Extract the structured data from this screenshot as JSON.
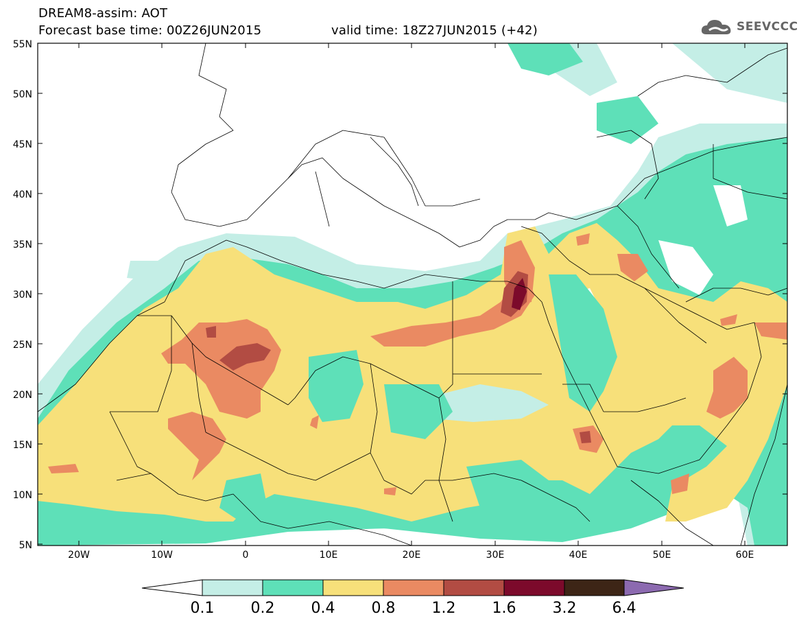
{
  "header": {
    "line1": "DREAM8-assim: AOT",
    "line2": "Forecast base time: 00Z26JUN2015",
    "valid": "valid time: 18Z27JUN2015 (+42)"
  },
  "logo": {
    "text": "SEEVCCC",
    "icon": "cloud-icon"
  },
  "map": {
    "lat_labels": [
      "55N",
      "50N",
      "45N",
      "40N",
      "35N",
      "30N",
      "25N",
      "20N",
      "15N",
      "10N",
      "5N"
    ],
    "lon_labels": [
      "20W",
      "10W",
      "0",
      "10E",
      "20E",
      "30E",
      "40E",
      "50E",
      "60E"
    ]
  },
  "colorbar": {
    "labels": [
      "0.1",
      "0.2",
      "0.4",
      "0.8",
      "1.2",
      "1.6",
      "3.2",
      "6.4"
    ],
    "colors": [
      "#ffffff",
      "#c4eee6",
      "#5ee0b8",
      "#f7e07a",
      "#ea8a62",
      "#b24c43",
      "#7c0a2b",
      "#3d2516",
      "#8c6ab0"
    ]
  }
}
